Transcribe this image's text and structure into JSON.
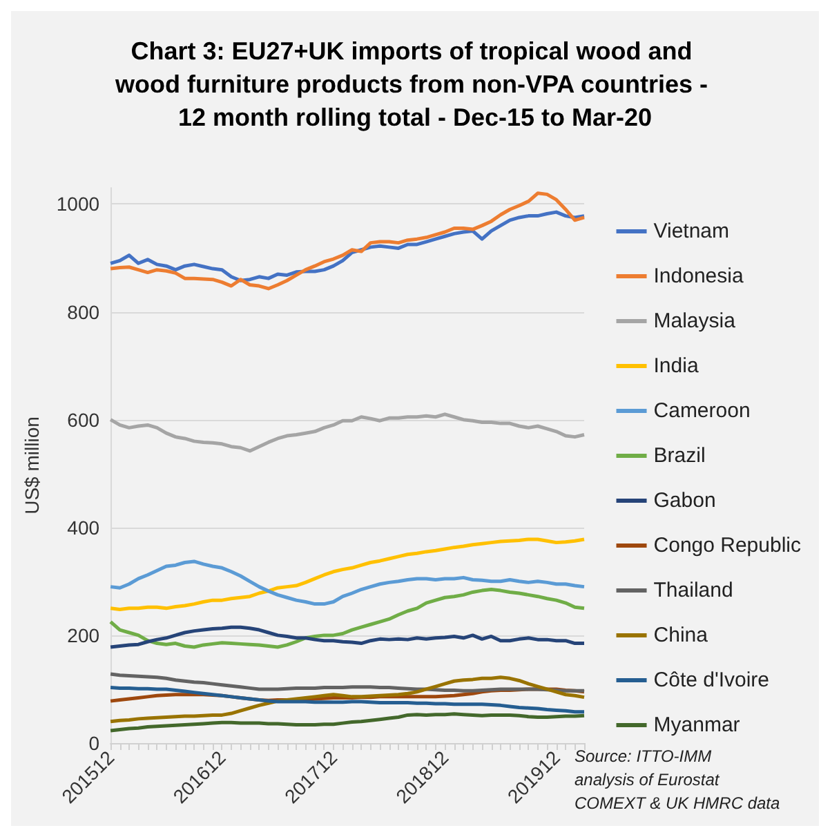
{
  "chart_data": {
    "type": "line",
    "title": "Chart 3: EU27+UK imports of tropical wood and wood furniture products from non-VPA countries - 12 month rolling total - Dec-15 to Mar-20",
    "ylabel": "US$ million",
    "annotations": [
      "Source: ITTO-IMM analysis of Eurostat COMEXT & UK HMRC data"
    ],
    "categories": [
      "201512",
      null,
      null,
      null,
      null,
      null,
      null,
      null,
      null,
      null,
      null,
      null,
      "201612",
      null,
      null,
      null,
      null,
      null,
      null,
      null,
      null,
      null,
      null,
      null,
      "201712",
      null,
      null,
      null,
      null,
      null,
      null,
      null,
      null,
      null,
      null,
      null,
      "201812",
      null,
      null,
      null,
      null,
      null,
      null,
      null,
      null,
      null,
      null,
      null,
      "201912",
      null,
      null,
      null
    ],
    "ylim": [
      0,
      1030
    ],
    "yticks": [
      0,
      200,
      400,
      600,
      800,
      1000
    ],
    "grid": "y",
    "legend": "right",
    "marker": "none",
    "line_style": "solid",
    "series": [
      {
        "name": "Vietnam",
        "color": "#4472c4",
        "values": [
          890,
          895,
          905,
          890,
          897,
          888,
          885,
          878,
          885,
          888,
          884,
          880,
          878,
          865,
          858,
          860,
          865,
          862,
          870,
          868,
          874,
          875,
          875,
          878,
          885,
          895,
          910,
          915,
          920,
          922,
          920,
          918,
          925,
          925,
          930,
          935,
          940,
          945,
          948,
          950,
          935,
          950,
          960,
          970,
          975,
          978,
          978,
          982,
          985,
          978,
          975,
          978
        ]
      },
      {
        "name": "Indonesia",
        "color": "#ed7d31",
        "values": [
          880,
          882,
          883,
          878,
          873,
          878,
          876,
          872,
          862,
          862,
          861,
          860,
          855,
          848,
          860,
          850,
          848,
          843,
          850,
          858,
          868,
          878,
          885,
          893,
          898,
          905,
          915,
          912,
          928,
          930,
          930,
          928,
          933,
          935,
          938,
          943,
          948,
          955,
          955,
          953,
          960,
          968,
          980,
          990,
          997,
          1005,
          1020,
          1018,
          1008,
          990,
          970,
          975
        ]
      },
      {
        "name": "Malaysia",
        "color": "#a5a5a5",
        "values": [
          600,
          590,
          585,
          588,
          590,
          585,
          575,
          568,
          565,
          560,
          558,
          557,
          555,
          550,
          548,
          542,
          550,
          558,
          565,
          570,
          572,
          575,
          578,
          585,
          590,
          598,
          598,
          605,
          602,
          598,
          603,
          603,
          605,
          605,
          607,
          605,
          610,
          605,
          600,
          598,
          595,
          595,
          593,
          593,
          588,
          585,
          588,
          583,
          578,
          570,
          568,
          572
        ]
      },
      {
        "name": "India",
        "color": "#ffc000",
        "values": [
          250,
          248,
          250,
          250,
          252,
          252,
          250,
          253,
          255,
          258,
          262,
          265,
          265,
          268,
          270,
          272,
          278,
          282,
          288,
          290,
          292,
          298,
          305,
          312,
          318,
          322,
          325,
          330,
          335,
          338,
          342,
          346,
          350,
          352,
          355,
          357,
          360,
          363,
          365,
          368,
          370,
          372,
          374,
          375,
          376,
          378,
          378,
          375,
          372,
          373,
          375,
          378
        ]
      },
      {
        "name": "Cameroon",
        "color": "#5b9bd5",
        "values": [
          290,
          288,
          295,
          305,
          312,
          320,
          328,
          330,
          335,
          337,
          332,
          328,
          325,
          318,
          310,
          300,
          290,
          282,
          275,
          270,
          265,
          262,
          258,
          258,
          262,
          272,
          278,
          285,
          290,
          295,
          298,
          300,
          303,
          305,
          305,
          303,
          305,
          305,
          307,
          303,
          302,
          300,
          300,
          303,
          300,
          298,
          300,
          298,
          295,
          295,
          292,
          290
        ]
      },
      {
        "name": "Brazil",
        "color": "#70ad47",
        "values": [
          225,
          210,
          205,
          200,
          190,
          185,
          183,
          185,
          180,
          178,
          182,
          184,
          186,
          185,
          184,
          183,
          182,
          180,
          178,
          182,
          188,
          195,
          198,
          200,
          200,
          203,
          210,
          215,
          220,
          225,
          230,
          238,
          245,
          250,
          260,
          265,
          270,
          272,
          275,
          280,
          283,
          285,
          283,
          280,
          278,
          275,
          272,
          268,
          265,
          260,
          252,
          250
        ]
      },
      {
        "name": "Gabon",
        "color": "#264478",
        "values": [
          178,
          180,
          182,
          183,
          188,
          192,
          195,
          200,
          205,
          208,
          210,
          212,
          213,
          215,
          215,
          213,
          210,
          205,
          200,
          198,
          195,
          195,
          192,
          190,
          190,
          188,
          187,
          185,
          190,
          193,
          192,
          193,
          192,
          195,
          193,
          195,
          196,
          198,
          195,
          200,
          193,
          198,
          190,
          190,
          193,
          195,
          192,
          192,
          190,
          190,
          185,
          185
        ]
      },
      {
        "name": "Congo Republic",
        "color": "#9e480e",
        "values": [
          78,
          80,
          82,
          84,
          86,
          88,
          89,
          90,
          90,
          90,
          90,
          89,
          88,
          86,
          84,
          82,
          80,
          79,
          80,
          80,
          80,
          81,
          82,
          83,
          84,
          84,
          84,
          85,
          85,
          86,
          86,
          86,
          86,
          86,
          86,
          86,
          87,
          88,
          90,
          92,
          95,
          97,
          98,
          98,
          99,
          100,
          100,
          100,
          100,
          98,
          97,
          95
        ]
      },
      {
        "name": "Thailand",
        "color": "#636363",
        "values": [
          128,
          126,
          125,
          124,
          123,
          122,
          120,
          117,
          115,
          113,
          112,
          110,
          108,
          106,
          104,
          102,
          100,
          100,
          100,
          101,
          102,
          102,
          102,
          103,
          103,
          103,
          104,
          104,
          104,
          103,
          103,
          102,
          101,
          100,
          100,
          99,
          98,
          98,
          97,
          97,
          98,
          99,
          100,
          100,
          100,
          100,
          100,
          99,
          98,
          97,
          97,
          97
        ]
      },
      {
        "name": "China",
        "color": "#997300",
        "values": [
          40,
          42,
          43,
          45,
          46,
          47,
          48,
          49,
          50,
          50,
          51,
          52,
          52,
          55,
          60,
          65,
          70,
          74,
          78,
          80,
          82,
          84,
          86,
          88,
          90,
          88,
          86,
          86,
          87,
          88,
          89,
          90,
          92,
          95,
          100,
          105,
          110,
          115,
          117,
          118,
          120,
          120,
          122,
          120,
          116,
          110,
          105,
          100,
          95,
          90,
          88,
          85
        ]
      },
      {
        "name": "Côte d'Ivoire",
        "color": "#255e91",
        "values": [
          103,
          102,
          102,
          101,
          101,
          100,
          100,
          98,
          96,
          94,
          92,
          90,
          88,
          86,
          84,
          82,
          80,
          78,
          77,
          77,
          77,
          77,
          76,
          76,
          76,
          76,
          77,
          77,
          76,
          75,
          75,
          75,
          75,
          74,
          74,
          73,
          73,
          72,
          72,
          72,
          72,
          71,
          70,
          68,
          66,
          65,
          64,
          62,
          61,
          60,
          58,
          58
        ]
      },
      {
        "name": "Myanmar",
        "color": "#43682b",
        "values": [
          23,
          25,
          27,
          28,
          30,
          31,
          32,
          33,
          34,
          35,
          36,
          37,
          38,
          38,
          37,
          37,
          37,
          36,
          36,
          35,
          34,
          34,
          34,
          35,
          35,
          37,
          39,
          40,
          42,
          44,
          46,
          48,
          52,
          53,
          52,
          53,
          53,
          54,
          53,
          52,
          51,
          52,
          52,
          52,
          51,
          49,
          48,
          48,
          49,
          50,
          50,
          51
        ]
      }
    ]
  }
}
